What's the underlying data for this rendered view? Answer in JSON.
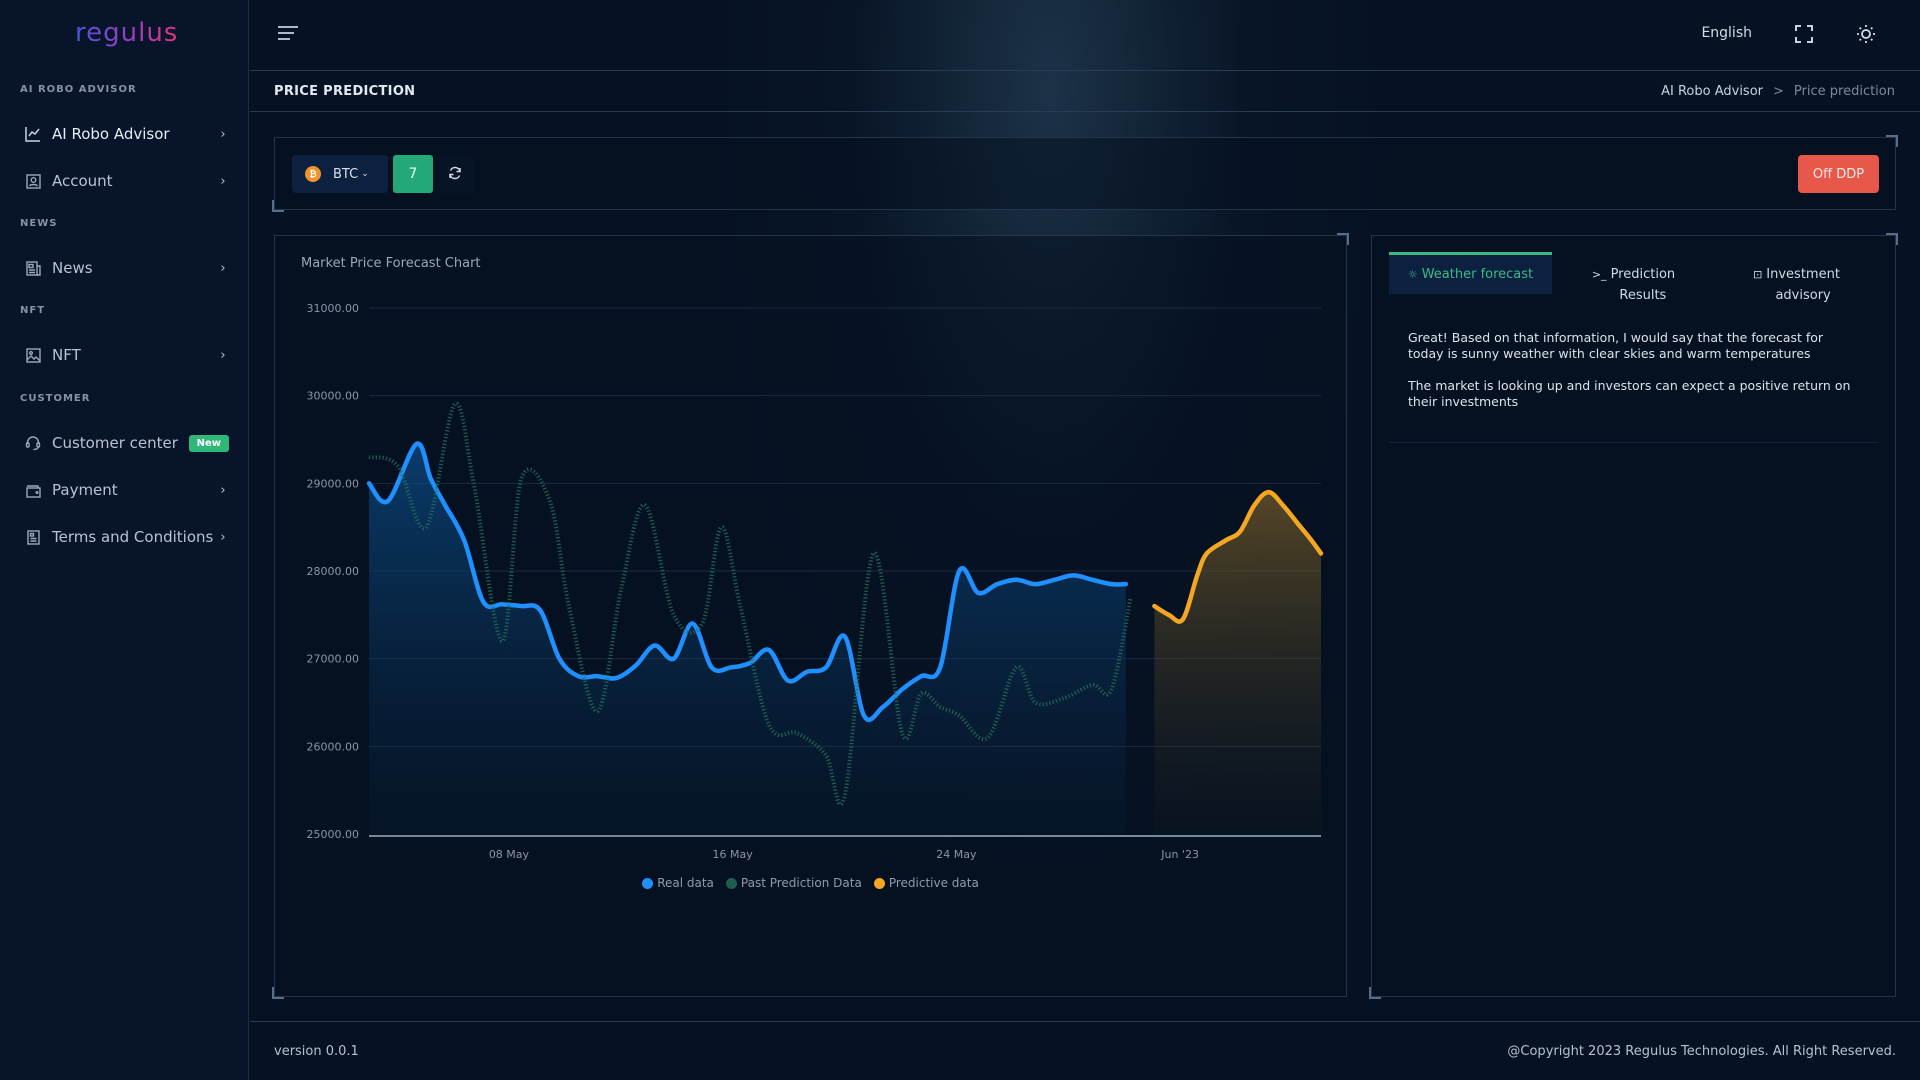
{
  "app": {
    "logo_text": "regulus"
  },
  "sidebar": {
    "sections": [
      {
        "label": "AI ROBO ADVISOR"
      },
      {
        "label": "NEWS"
      },
      {
        "label": "NFT"
      },
      {
        "label": "CUSTOMER"
      }
    ],
    "items": [
      {
        "label": "AI Robo Advisor",
        "icon": "chart-line-icon",
        "active": true
      },
      {
        "label": "Account",
        "icon": "user-card-icon"
      },
      {
        "label": "News",
        "icon": "newspaper-icon"
      },
      {
        "label": "NFT",
        "icon": "image-icon"
      },
      {
        "label": "Customer center",
        "icon": "headset-icon",
        "badge": "New"
      },
      {
        "label": "Payment",
        "icon": "wallet-icon"
      },
      {
        "label": "Terms and Conditions",
        "icon": "document-icon"
      }
    ]
  },
  "topbar": {
    "language": "English",
    "fullscreen_icon": "fullscreen-icon",
    "theme_icon": "sun-icon"
  },
  "page_header": {
    "title": "PRICE PREDICTION",
    "breadcrumb": [
      "AI Robo Advisor",
      "Price prediction"
    ],
    "breadcrumb_separator": ">"
  },
  "toolbar": {
    "coin": "BTC",
    "coin_icon_glyph": "₿",
    "days": "7",
    "refresh_icon": "refresh-icon",
    "off_button": "Off DDP"
  },
  "chart_card": {
    "title": "Market Price Forecast Chart"
  },
  "colors": {
    "real": "#1e90ff",
    "past_prediction": "#1f6e5a",
    "predictive": "#f5a623",
    "accent_green": "#3fb981",
    "danger": "#e8584a"
  },
  "chart_data": {
    "type": "line",
    "title": "Market Price Forecast Chart",
    "xlabel": "",
    "ylabel": "",
    "ylim": [
      25000,
      31000
    ],
    "yticks": [
      "31000.00",
      "30000.00",
      "29000.00",
      "28000.00",
      "27000.00",
      "26000.00",
      "25000.00"
    ],
    "xticks": [
      "08 May",
      "16 May",
      "24 May",
      "Jun '23"
    ],
    "grid": "horizontal",
    "legend_position": "bottom",
    "legend": [
      "Real data",
      "Past Prediction Data",
      "Predictive data"
    ],
    "series": [
      {
        "name": "Real data",
        "style": "solid-area",
        "x": [
          0,
          0.02,
          0.05,
          0.065,
          0.08,
          0.1,
          0.12,
          0.14,
          0.16,
          0.18,
          0.2,
          0.22,
          0.24,
          0.26,
          0.28,
          0.3,
          0.32,
          0.34,
          0.36,
          0.38,
          0.4,
          0.42,
          0.44,
          0.46,
          0.48,
          0.5,
          0.52,
          0.54,
          0.56,
          0.58,
          0.6,
          0.62,
          0.64,
          0.66,
          0.68,
          0.7,
          0.72,
          0.74,
          0.76,
          0.78,
          0.795
        ],
        "values": [
          29000,
          28800,
          29450,
          29050,
          28750,
          28350,
          27650,
          27620,
          27600,
          27550,
          27000,
          26800,
          26800,
          26780,
          26920,
          27150,
          27000,
          27400,
          26900,
          26900,
          26950,
          27100,
          26750,
          26850,
          26900,
          27250,
          26350,
          26450,
          26650,
          26800,
          26900,
          28000,
          27750,
          27850,
          27900,
          27850,
          27900,
          27950,
          27900,
          27850,
          27850
        ]
      },
      {
        "name": "Past Prediction Data",
        "style": "dotted",
        "x": [
          0,
          0.03,
          0.06,
          0.09,
          0.11,
          0.14,
          0.16,
          0.19,
          0.21,
          0.24,
          0.265,
          0.29,
          0.32,
          0.35,
          0.37,
          0.39,
          0.42,
          0.45,
          0.48,
          0.5,
          0.53,
          0.56,
          0.58,
          0.6,
          0.62,
          0.65,
          0.68,
          0.7,
          0.73,
          0.76,
          0.78,
          0.8
        ],
        "values": [
          29300,
          29200,
          28500,
          29900,
          29000,
          27200,
          29050,
          28800,
          27600,
          26400,
          27800,
          28750,
          27500,
          27400,
          28500,
          27600,
          26250,
          26150,
          25900,
          25450,
          28200,
          26150,
          26600,
          26450,
          26350,
          26100,
          26900,
          26500,
          26550,
          26700,
          26650,
          27700
        ]
      },
      {
        "name": "Predictive data",
        "style": "solid-area",
        "x": [
          0.825,
          0.84,
          0.855,
          0.87,
          0.88,
          0.9,
          0.915,
          0.93,
          0.945,
          0.96,
          0.975,
          0.99,
          1.0
        ],
        "values": [
          27600,
          27500,
          27450,
          27950,
          28200,
          28350,
          28450,
          28750,
          28900,
          28750,
          28550,
          28350,
          28200
        ]
      }
    ]
  },
  "info_card": {
    "tabs": [
      {
        "label": "Weather forecast",
        "icon": "sun-icon",
        "glyph": "☼",
        "active": true
      },
      {
        "label_line1": "Prediction",
        "label_line2": "Results",
        "icon": "terminal-icon",
        "glyph": ">_"
      },
      {
        "label_line1": "Investment",
        "label_line2": "advisory",
        "icon": "message-icon",
        "glyph": "⊡"
      }
    ],
    "paragraphs": [
      "Great! Based on that information, I would say that the forecast for today is sunny weather with clear skies and warm temperatures",
      "The market is looking up and investors can expect a positive return on their investments"
    ]
  },
  "footer": {
    "version": "version 0.0.1",
    "copyright": "@Copyright 2023 Regulus Technologies. All Right Reserved."
  }
}
